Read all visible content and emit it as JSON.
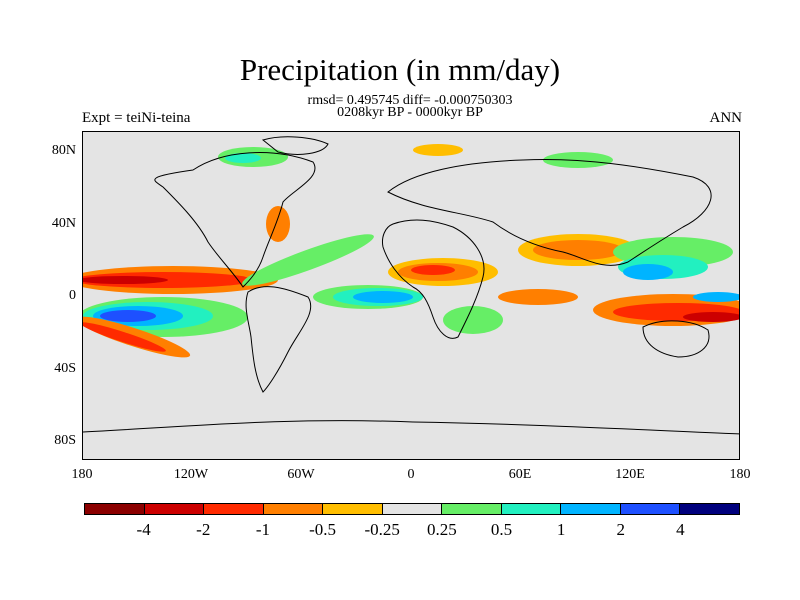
{
  "title": "Precipitation (in mm/day)",
  "stats_line": "rmsd= 0.495745 diff= -0.000750303",
  "period_line": "0208kyr BP - 0000kyr BP",
  "left_label": "Expt = teiNi-teina",
  "right_label": "ANN",
  "map": {
    "projection": "cylindrical-equidistant",
    "lon_range": [
      -180,
      180
    ],
    "lat_range": [
      -90,
      90
    ],
    "lat_ticks": [
      "80N",
      "40N",
      "0",
      "40S",
      "80S"
    ],
    "lon_ticks": [
      "180",
      "120W",
      "60W",
      "0",
      "60E",
      "120E",
      "180"
    ],
    "background_color": "#e4e4e4"
  },
  "colorbar": {
    "colors": [
      "#8b0000",
      "#cc0000",
      "#ff2a00",
      "#ff7f00",
      "#ffbe00",
      "#e4e4e4",
      "#66ee66",
      "#22f0c0",
      "#00b4ff",
      "#1e50ff",
      "#00007d"
    ],
    "labels": [
      "-4",
      "-2",
      "-1",
      "-0.5",
      "-0.25",
      "0.25",
      "0.5",
      "1",
      "2",
      "4"
    ]
  }
}
